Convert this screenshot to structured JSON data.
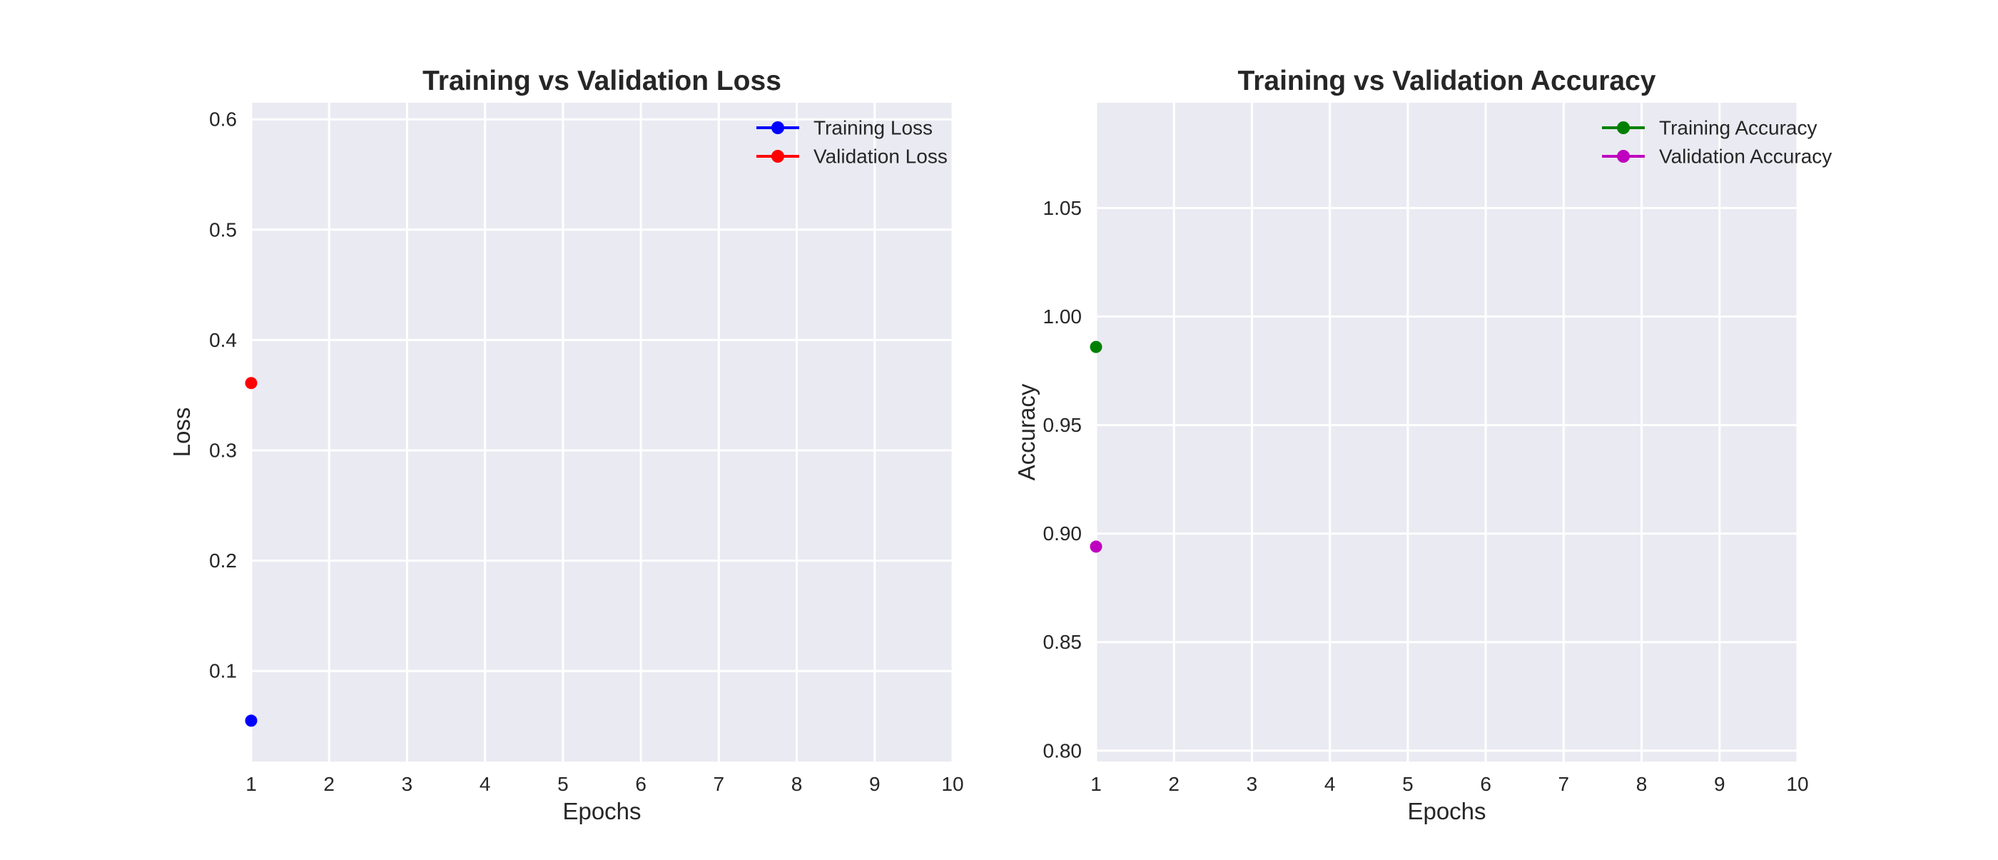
{
  "chart_data": [
    {
      "type": "line",
      "title": "Training vs Validation Loss",
      "xlabel": "Epochs",
      "ylabel": "Loss",
      "xlim": [
        1,
        10
      ],
      "ylim": [
        0.018,
        0.615
      ],
      "xticks": [
        1,
        2,
        3,
        4,
        5,
        6,
        7,
        8,
        9,
        10
      ],
      "yticks": [
        0.1,
        0.2,
        0.3,
        0.4,
        0.5,
        0.6
      ],
      "ytick_labels": [
        "0.1",
        "0.2",
        "0.3",
        "0.4",
        "0.5",
        "0.6"
      ],
      "grid": true,
      "legend_position": "top-right",
      "series": [
        {
          "name": "Training Loss",
          "color": "#0000ff",
          "x": [
            1
          ],
          "values": [
            0.055
          ]
        },
        {
          "name": "Validation Loss",
          "color": "#ff0000",
          "x": [
            1
          ],
          "values": [
            0.361
          ]
        }
      ]
    },
    {
      "type": "line",
      "title": "Training vs Validation Accuracy",
      "xlabel": "Epochs",
      "ylabel": "Accuracy",
      "xlim": [
        1,
        10
      ],
      "ylim": [
        0.795,
        1.0985
      ],
      "xticks": [
        1,
        2,
        3,
        4,
        5,
        6,
        7,
        8,
        9,
        10
      ],
      "yticks": [
        0.8,
        0.85,
        0.9,
        0.95,
        1.0,
        1.05
      ],
      "ytick_labels": [
        "0.80",
        "0.85",
        "0.90",
        "0.95",
        "1.00",
        "1.05"
      ],
      "grid": true,
      "legend_position": "top-right",
      "series": [
        {
          "name": "Training Accuracy",
          "color": "#008000",
          "x": [
            1
          ],
          "values": [
            0.986
          ]
        },
        {
          "name": "Validation Accuracy",
          "color": "#bf00bf",
          "x": [
            1
          ],
          "values": [
            0.894
          ]
        }
      ]
    }
  ]
}
